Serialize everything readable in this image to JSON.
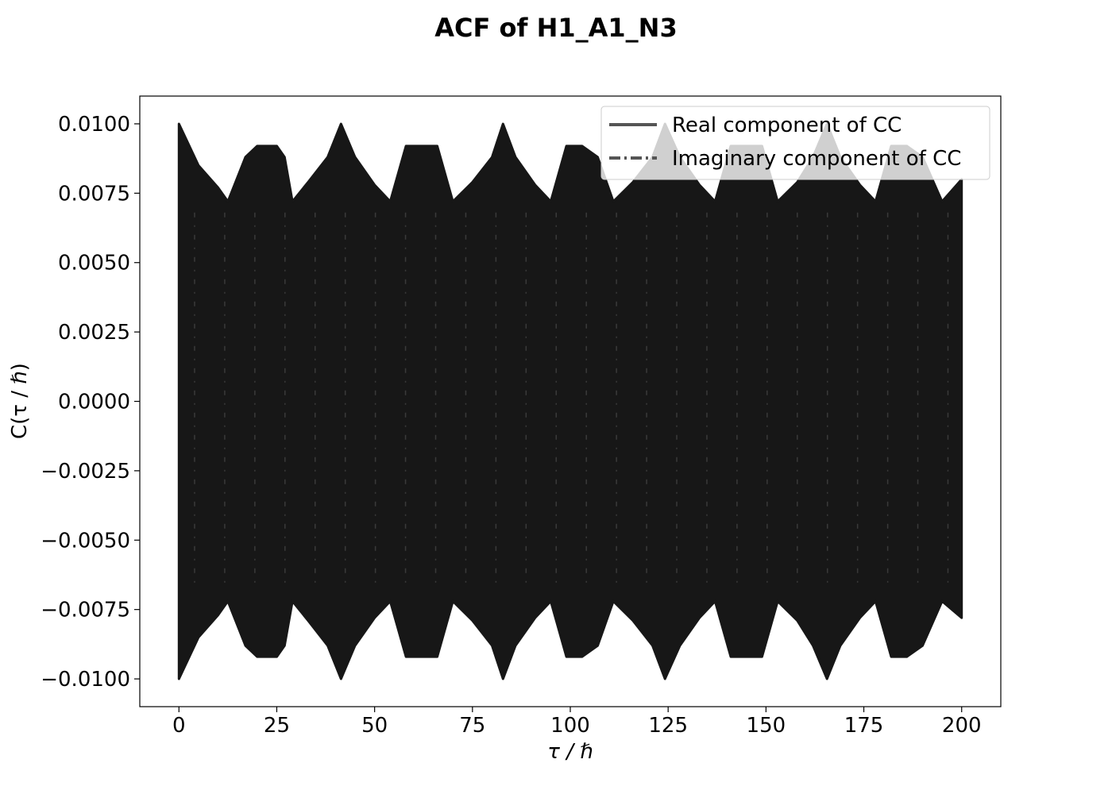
{
  "chart_data": {
    "type": "line",
    "title": "ACF of H1_A1_N3",
    "xlabel": "τ / ℏ",
    "ylabel": "C(τ / ℏ)",
    "xlim": [
      -10,
      210
    ],
    "ylim": [
      -0.011,
      0.011
    ],
    "x_ticks": [
      0,
      25,
      50,
      75,
      100,
      125,
      150,
      175,
      200
    ],
    "x_tick_labels": [
      "0",
      "25",
      "50",
      "75",
      "100",
      "125",
      "150",
      "175",
      "200"
    ],
    "y_ticks": [
      0.01,
      0.0075,
      0.005,
      0.0025,
      0.0,
      -0.0025,
      -0.005,
      -0.0075,
      -0.01
    ],
    "y_tick_labels": [
      "0.0100",
      "0.0075",
      "0.0050",
      "0.0025",
      "0.0000",
      "−0.0025",
      "−0.0050",
      "−0.0075",
      "−0.0100"
    ],
    "grid": false,
    "legend_position": "top-right",
    "series_color": "#171717",
    "legend_line_color": "#555555",
    "series": [
      {
        "name": "Real component of CC",
        "line_style": "solid",
        "x_range": [
          0,
          200
        ],
        "envelope": {
          "x": [
            0,
            5,
            10,
            12.5,
            17,
            20,
            25,
            27,
            29,
            33,
            38,
            41.4,
            45,
            50,
            54,
            58,
            62,
            66,
            70,
            75,
            80,
            82.8,
            86,
            91,
            95,
            99,
            103,
            107,
            111,
            116,
            121,
            124.2,
            128,
            133,
            137,
            141,
            145,
            149,
            153,
            158,
            162,
            165.6,
            169,
            174,
            178,
            182,
            186,
            190,
            195,
            200
          ],
          "upper": [
            0.01,
            0.0085,
            0.0077,
            0.0072,
            0.0088,
            0.0092,
            0.0092,
            0.0088,
            0.0072,
            0.0079,
            0.0088,
            0.01,
            0.0088,
            0.0078,
            0.0072,
            0.0092,
            0.0092,
            0.0092,
            0.0072,
            0.0079,
            0.0088,
            0.01,
            0.0088,
            0.0078,
            0.0072,
            0.0092,
            0.0092,
            0.0088,
            0.0072,
            0.0079,
            0.0088,
            0.01,
            0.0088,
            0.0078,
            0.0072,
            0.0092,
            0.0092,
            0.0092,
            0.0072,
            0.0079,
            0.0088,
            0.01,
            0.0088,
            0.0078,
            0.0072,
            0.0092,
            0.0092,
            0.0088,
            0.0072,
            0.008
          ],
          "lower": [
            -0.01,
            -0.0085,
            -0.0077,
            -0.0072,
            -0.0088,
            -0.0092,
            -0.0092,
            -0.0088,
            -0.0072,
            -0.0079,
            -0.0088,
            -0.01,
            -0.0088,
            -0.0078,
            -0.0072,
            -0.0092,
            -0.0092,
            -0.0092,
            -0.0072,
            -0.0079,
            -0.0088,
            -0.01,
            -0.0088,
            -0.0078,
            -0.0072,
            -0.0092,
            -0.0092,
            -0.0088,
            -0.0072,
            -0.0079,
            -0.0088,
            -0.01,
            -0.0088,
            -0.0078,
            -0.0072,
            -0.0092,
            -0.0092,
            -0.0092,
            -0.0072,
            -0.0079,
            -0.0088,
            -0.01,
            -0.0088,
            -0.0078,
            -0.0072,
            -0.0092,
            -0.0092,
            -0.0088,
            -0.0072,
            -0.0078
          ]
        }
      },
      {
        "name": "Imaginary component of CC",
        "line_style": "dashdot",
        "x_range": [
          0,
          200
        ]
      }
    ]
  }
}
